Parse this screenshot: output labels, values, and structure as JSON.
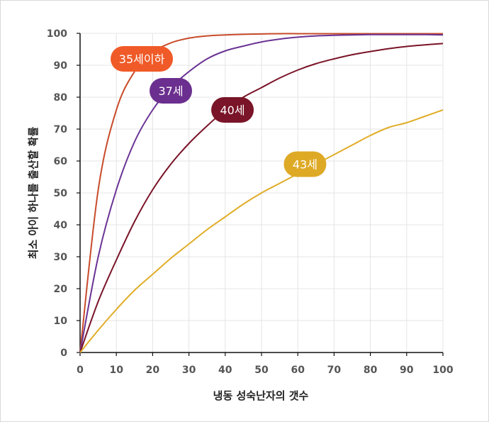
{
  "chart_data": {
    "type": "line",
    "title": "",
    "xlabel": "냉동 성숙난자의 갯수",
    "ylabel": "최소 아이 하나를 출산할 확률",
    "xlim": [
      0,
      100
    ],
    "ylim": [
      0,
      100
    ],
    "x_ticks": [
      "0",
      "10",
      "20",
      "30",
      "40",
      "50",
      "60",
      "70",
      "80",
      "90",
      "100"
    ],
    "y_ticks": [
      "0",
      "10",
      "20",
      "30",
      "40",
      "50",
      "60",
      "70",
      "80",
      "90",
      "100"
    ],
    "grid": true,
    "x": [
      0,
      5,
      10,
      15,
      20,
      25,
      30,
      35,
      40,
      45,
      50,
      55,
      60,
      65,
      70,
      75,
      80,
      85,
      90,
      95,
      100
    ],
    "series": [
      {
        "name": "35세이하",
        "color": "#c84b2a",
        "label_color": "#f05a28",
        "label_at": [
          17,
          92
        ],
        "values": [
          0,
          51,
          76,
          88,
          94,
          97,
          98.5,
          99.2,
          99.5,
          99.7,
          99.8,
          99.9,
          99.9,
          99.9,
          99.9,
          99.9,
          99.9,
          99.9,
          99.9,
          99.9,
          99.9
        ]
      },
      {
        "name": "37세",
        "color": "#6a3394",
        "label_color": "#6b2f8f",
        "label_at": [
          25,
          82
        ],
        "values": [
          0,
          30,
          51,
          66,
          76,
          83,
          88,
          92,
          94.5,
          96,
          97.3,
          98.2,
          98.8,
          99.2,
          99.4,
          99.5,
          99.6,
          99.6,
          99.6,
          99.6,
          99.5
        ]
      },
      {
        "name": "40세",
        "color": "#7a1428",
        "label_color": "#7a1428",
        "label_at": [
          42,
          76
        ],
        "values": [
          0,
          16,
          29,
          41,
          51,
          59,
          65.5,
          71,
          76,
          80,
          83,
          86,
          88.5,
          90.5,
          92,
          93.3,
          94.3,
          95.2,
          95.9,
          96.4,
          96.8
        ]
      },
      {
        "name": "43세",
        "color": "#e0ad28",
        "label_color": "#deaa26",
        "label_at": [
          62,
          59
        ],
        "values": [
          0,
          7,
          13.5,
          19.5,
          24.5,
          29.5,
          34,
          38.5,
          42.5,
          46.5,
          50,
          53,
          56,
          59,
          62,
          65,
          68,
          70.5,
          72,
          74,
          76
        ]
      }
    ]
  }
}
